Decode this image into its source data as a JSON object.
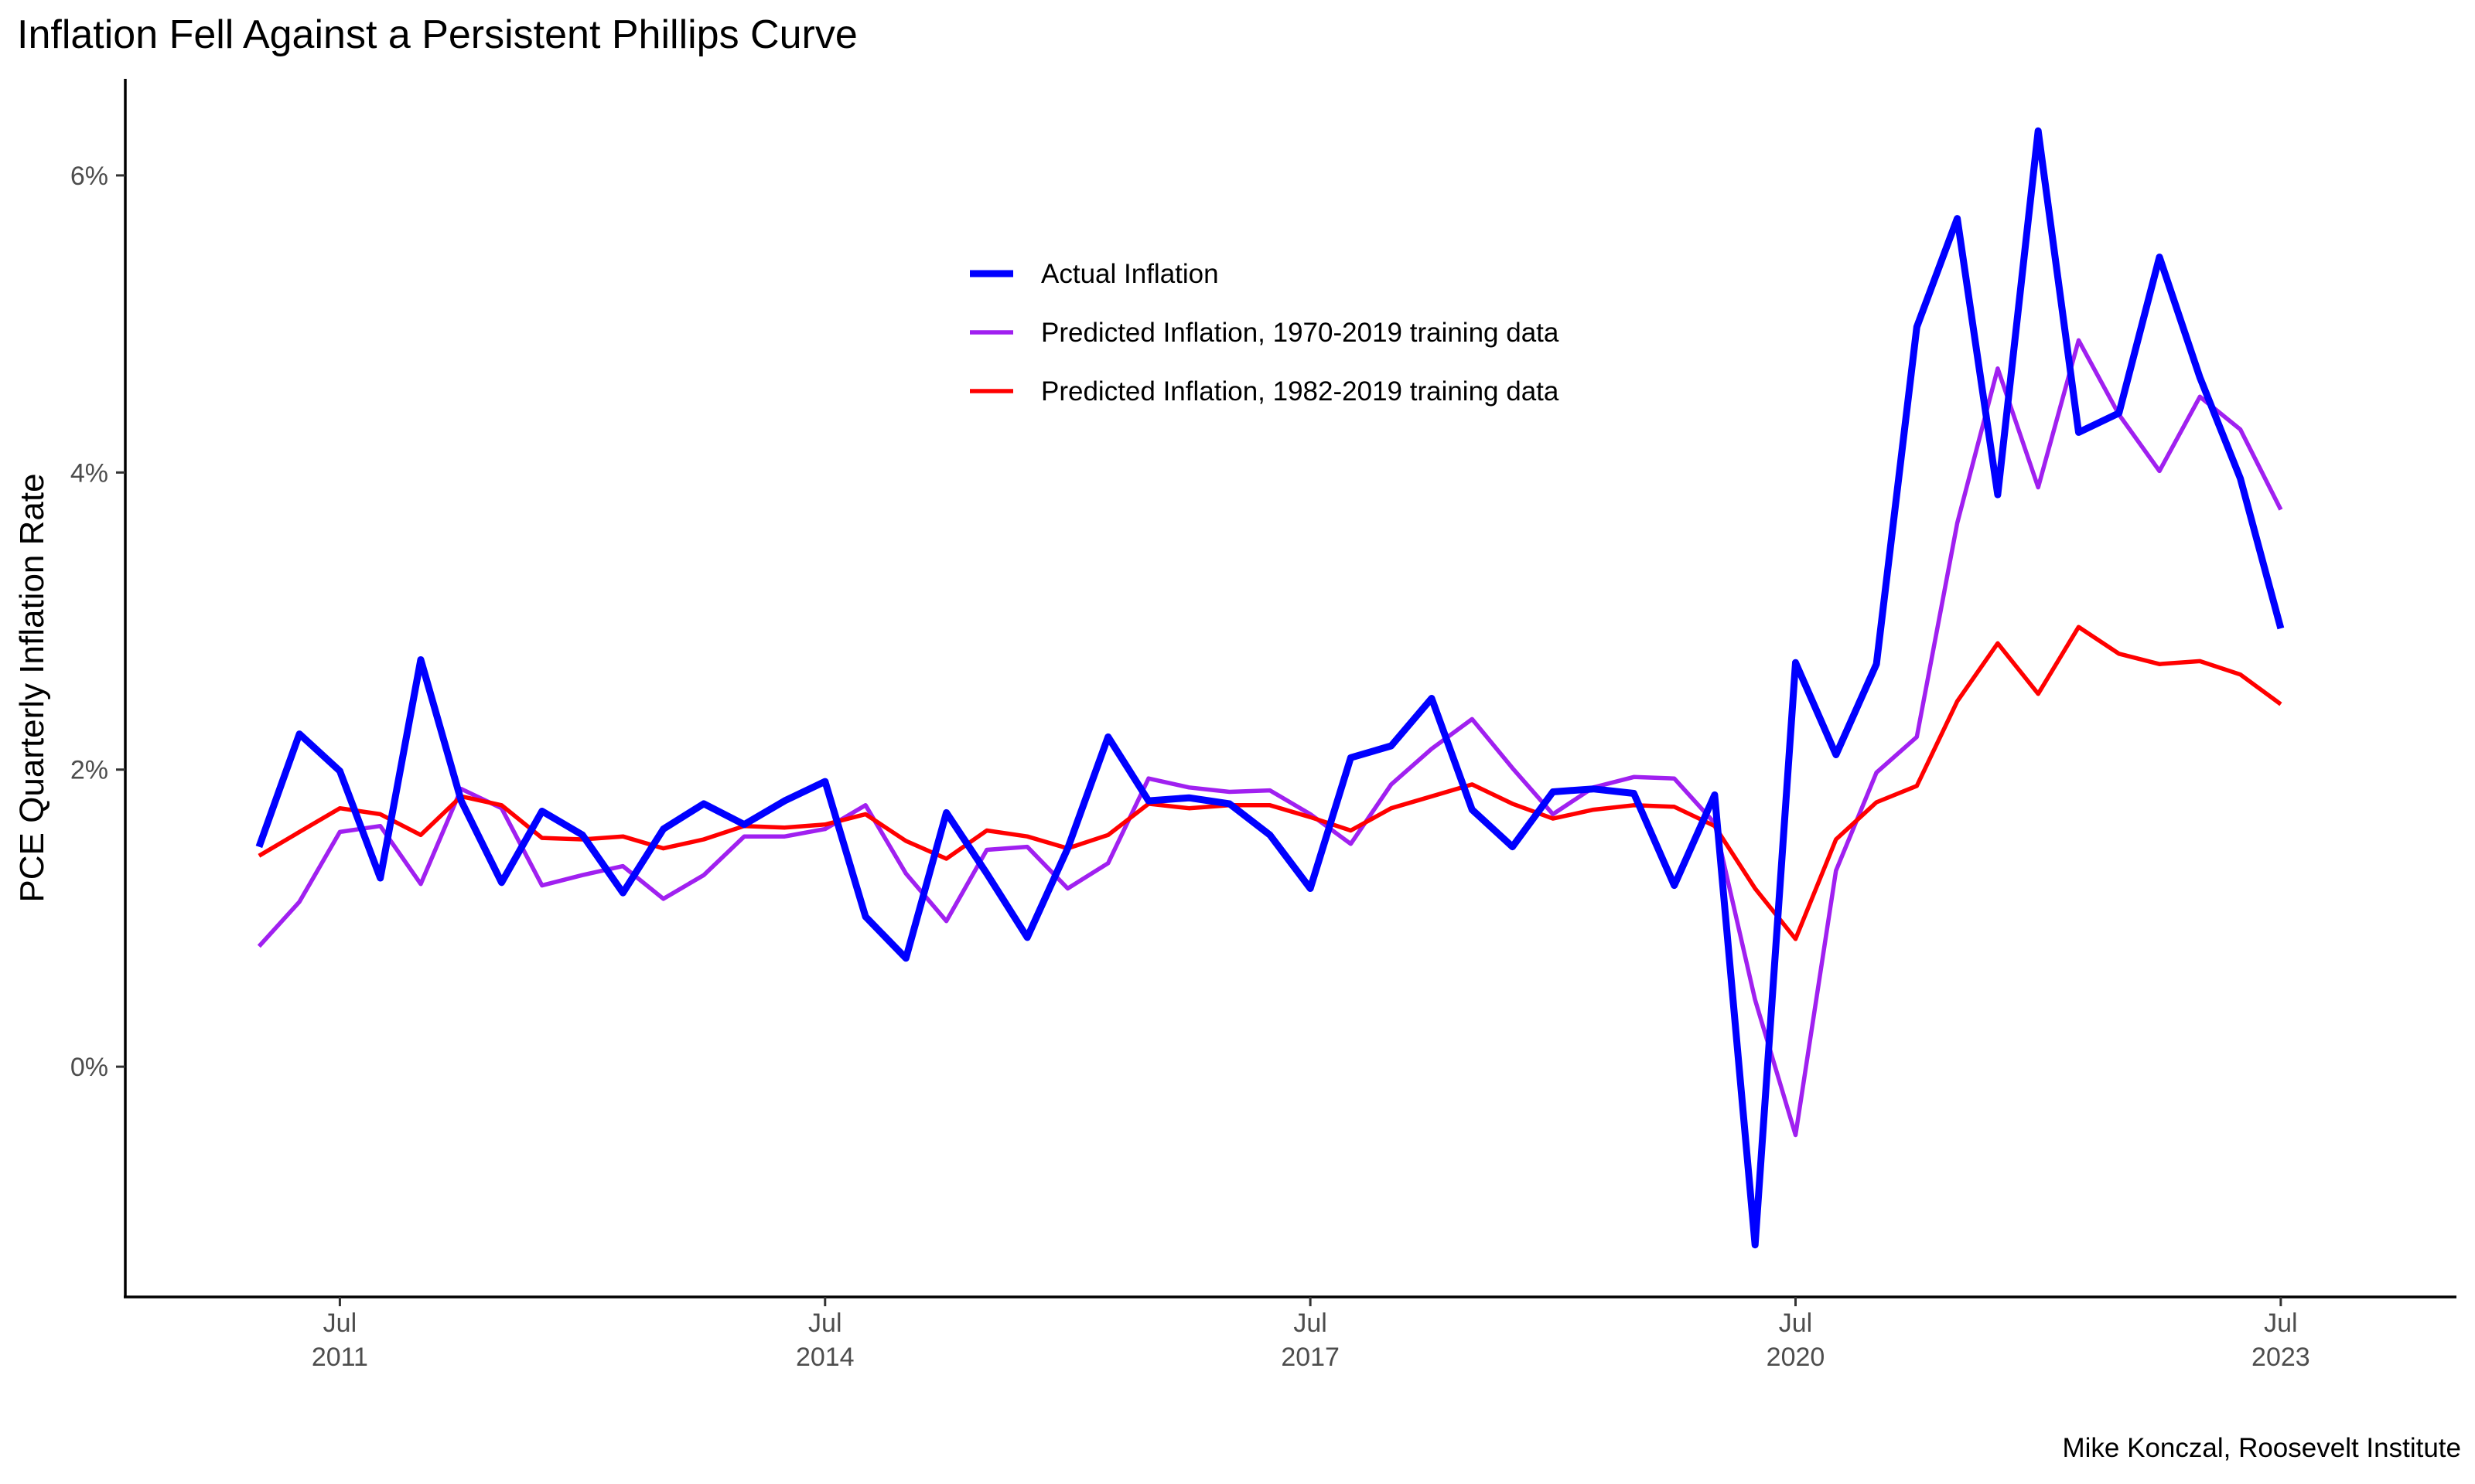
{
  "chart_data": {
    "type": "line",
    "title": "Inflation Fell Against a Persistent Phillips Curve",
    "ylabel": "PCE Quarterly Inflation Rate",
    "xlabel": "",
    "caption": "Mike Konczal, Roosevelt Institute",
    "x_ticks": [
      {
        "month": "Jul",
        "year": "2011",
        "date": "2011-07"
      },
      {
        "month": "Jul",
        "year": "2014",
        "date": "2014-07"
      },
      {
        "month": "Jul",
        "year": "2017",
        "date": "2017-07"
      },
      {
        "month": "Jul",
        "year": "2020",
        "date": "2020-07"
      },
      {
        "month": "Jul",
        "year": "2023",
        "date": "2023-07"
      }
    ],
    "y_ticks": [
      {
        "value": 0,
        "label": "0%"
      },
      {
        "value": 2,
        "label": "2%"
      },
      {
        "value": 4,
        "label": "4%"
      },
      {
        "value": 6,
        "label": "6%"
      }
    ],
    "x_range": [
      "2010-11",
      "2023-12"
    ],
    "ylim": [
      -1.55,
      6.65
    ],
    "grid": false,
    "legend_position": "top-center",
    "x": [
      "2011-01",
      "2011-04",
      "2011-07",
      "2011-10",
      "2012-01",
      "2012-04",
      "2012-07",
      "2012-10",
      "2013-01",
      "2013-04",
      "2013-07",
      "2013-10",
      "2014-01",
      "2014-04",
      "2014-07",
      "2014-10",
      "2015-01",
      "2015-04",
      "2015-07",
      "2015-10",
      "2016-01",
      "2016-04",
      "2016-07",
      "2016-10",
      "2017-01",
      "2017-04",
      "2017-07",
      "2017-10",
      "2018-01",
      "2018-04",
      "2018-07",
      "2018-10",
      "2019-01",
      "2019-04",
      "2019-07",
      "2019-10",
      "2020-01",
      "2020-04",
      "2020-07",
      "2020-10",
      "2021-01",
      "2021-04",
      "2021-07",
      "2021-10",
      "2022-01",
      "2022-04",
      "2022-07",
      "2022-10",
      "2023-01",
      "2023-04",
      "2023-07"
    ],
    "series": [
      {
        "name": "Actual Inflation",
        "color": "#0000FF",
        "width": "thick",
        "values": [
          1.48,
          2.24,
          1.99,
          1.27,
          2.74,
          1.79,
          1.24,
          1.72,
          1.56,
          1.17,
          1.6,
          1.77,
          1.63,
          1.79,
          1.92,
          1.01,
          0.73,
          1.71,
          1.3,
          0.87,
          1.47,
          2.22,
          1.79,
          1.81,
          1.77,
          1.56,
          1.2,
          2.08,
          2.16,
          2.48,
          1.73,
          1.48,
          1.85,
          1.87,
          1.84,
          1.22,
          1.83,
          -1.2,
          2.72,
          2.1,
          2.71,
          4.98,
          5.71,
          3.85,
          6.3,
          4.27,
          4.4,
          5.45,
          4.64,
          3.96,
          2.95
        ]
      },
      {
        "name": "Predicted Inflation, 1970-2019 training data",
        "color": "#A020F0",
        "width": "medium",
        "values": [
          0.81,
          1.11,
          1.58,
          1.62,
          1.23,
          1.87,
          1.74,
          1.22,
          1.29,
          1.35,
          1.13,
          1.29,
          1.55,
          1.55,
          1.6,
          1.76,
          1.3,
          0.98,
          1.46,
          1.48,
          1.2,
          1.37,
          1.94,
          1.88,
          1.85,
          1.86,
          1.7,
          1.5,
          1.9,
          2.14,
          2.34,
          2.01,
          1.7,
          1.88,
          1.95,
          1.94,
          1.64,
          0.45,
          -0.46,
          1.32,
          1.98,
          2.22,
          3.66,
          4.7,
          3.9,
          4.89,
          4.39,
          4.01,
          4.51,
          4.29,
          3.75
        ]
      },
      {
        "name": "Predicted Inflation, 1982-2019 training data",
        "color": "#FF0000",
        "width": "medium",
        "values": [
          1.42,
          1.58,
          1.74,
          1.7,
          1.56,
          1.82,
          1.76,
          1.54,
          1.53,
          1.55,
          1.47,
          1.53,
          1.62,
          1.61,
          1.63,
          1.7,
          1.52,
          1.4,
          1.59,
          1.55,
          1.47,
          1.56,
          1.77,
          1.74,
          1.76,
          1.76,
          1.68,
          1.59,
          1.74,
          1.82,
          1.9,
          1.77,
          1.67,
          1.73,
          1.76,
          1.75,
          1.62,
          1.2,
          0.86,
          1.53,
          1.78,
          1.89,
          2.46,
          2.85,
          2.51,
          2.96,
          2.78,
          2.71,
          2.73,
          2.64,
          2.44
        ]
      }
    ]
  }
}
